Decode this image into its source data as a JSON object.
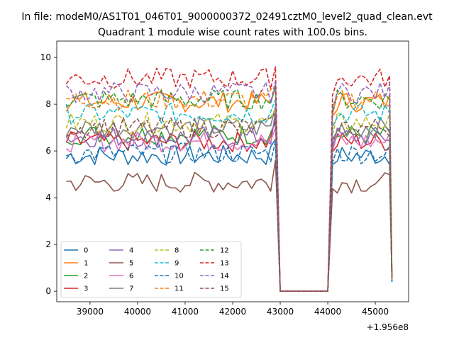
{
  "figure": {
    "suptitle": "In file: modeM0/AS1T01_046T01_9000000372_02491cztM0_level2_quad_clean.evt",
    "title": "Quadrant 1 module wise count rates with 100.0s bins.",
    "x_offset_label": "+1.956e8"
  },
  "chart_data": {
    "type": "line",
    "title": "Quadrant 1 module wise count rates with 100.0s bins.",
    "xlabel": "",
    "ylabel": "",
    "x_offset": 195600000,
    "xlim": [
      38300,
      45700
    ],
    "ylim": [
      -0.45,
      10.7
    ],
    "xticks": [
      39000,
      40000,
      41000,
      42000,
      43000,
      44000,
      45000
    ],
    "xtick_labels": [
      "39000",
      "40000",
      "41000",
      "42000",
      "43000",
      "44000",
      "45000"
    ],
    "yticks": [
      0,
      2,
      4,
      6,
      8,
      10
    ],
    "ytick_labels": [
      "0",
      "2",
      "4",
      "6",
      "8",
      "10"
    ],
    "segments": [
      {
        "x_start": 38500,
        "x_end": 42900,
        "step": 100
      },
      {
        "x_start": 43000,
        "x_end": 44000,
        "step": 100
      },
      {
        "x_start": 44100,
        "x_end": 45300,
        "step": 100
      },
      {
        "x_start": 45350,
        "x_end": 45350,
        "step": 100
      }
    ],
    "legend_location": "lower-left",
    "series": [
      {
        "name": "0",
        "color": "#1f77b4",
        "style": "solid",
        "level": 5.8,
        "dip": 6.5,
        "end": 0.4
      },
      {
        "name": "1",
        "color": "#ff7f0e",
        "style": "solid",
        "level": 8.1,
        "dip": 8.7,
        "end": 0.6
      },
      {
        "name": "2",
        "color": "#2ca02c",
        "style": "solid",
        "level": 6.7,
        "dip": 7.2,
        "end": 0.5
      },
      {
        "name": "3",
        "color": "#d62728",
        "style": "solid",
        "level": 6.4,
        "dip": 7.4,
        "end": 0.5
      },
      {
        "name": "4",
        "color": "#9467bd",
        "style": "solid",
        "level": 6.6,
        "dip": 7.7,
        "end": 0.5
      },
      {
        "name": "5",
        "color": "#8c564b",
        "style": "solid",
        "level": 4.65,
        "dip": 5.6,
        "end": 0.6
      },
      {
        "name": "6",
        "color": "#e377c2",
        "style": "solid",
        "level": 6.4,
        "dip": 7.0,
        "end": 0.5
      },
      {
        "name": "7",
        "color": "#7f7f7f",
        "style": "solid",
        "level": 7.0,
        "dip": 7.9,
        "end": 0.5
      },
      {
        "name": "8",
        "color": "#bcbd22",
        "style": "dashed",
        "level": 7.2,
        "dip": 7.8,
        "end": 0.5
      },
      {
        "name": "9",
        "color": "#17becf",
        "style": "dashed",
        "level": 7.6,
        "dip": 8.2,
        "end": 0.5
      },
      {
        "name": "10",
        "color": "#1f77b4",
        "style": "dashed",
        "level": 5.9,
        "dip": 6.4,
        "end": 0.4
      },
      {
        "name": "11",
        "color": "#ff7f0e",
        "style": "dashed",
        "level": 8.2,
        "dip": 8.8,
        "end": 0.6
      },
      {
        "name": "12",
        "color": "#2ca02c",
        "style": "dashed",
        "level": 8.2,
        "dip": 8.8,
        "end": 0.6
      },
      {
        "name": "13",
        "color": "#d62728",
        "style": "dashed",
        "level": 9.1,
        "dip": 9.6,
        "end": 0.6
      },
      {
        "name": "14",
        "color": "#9467bd",
        "style": "dashed",
        "level": 8.5,
        "dip": 9.0,
        "end": 0.6
      },
      {
        "name": "15",
        "color": "#8c564b",
        "style": "dashed",
        "level": 7.0,
        "dip": 7.6,
        "end": 0.5
      }
    ],
    "peak_at": 42900,
    "gap": {
      "x_start": 43000,
      "x_end": 44000,
      "value": 0
    },
    "recovery_x": 44100,
    "recovery_value": 3.8
  }
}
